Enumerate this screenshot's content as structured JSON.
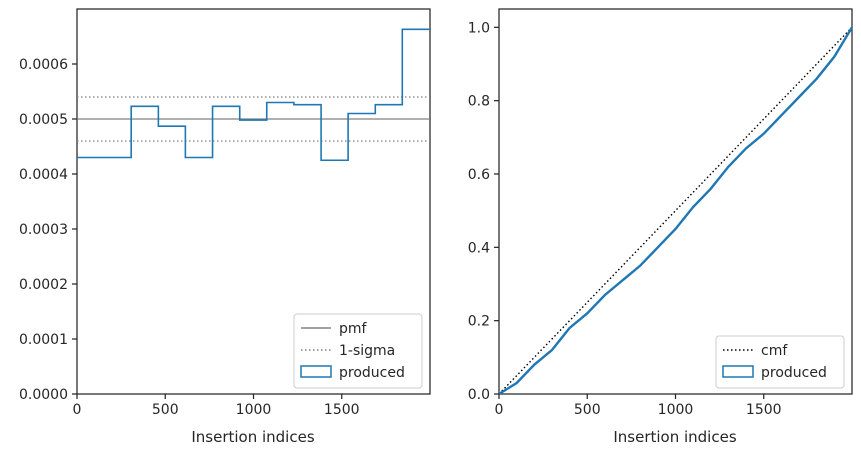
{
  "chart_data": [
    {
      "type": "step",
      "xlabel": "Insertion indices",
      "ylabel": "",
      "xlim": [
        0,
        2000
      ],
      "ylim": [
        0,
        0.0007
      ],
      "xticks": [
        0,
        500,
        1000,
        1500
      ],
      "xtick_labels": [
        "0",
        "500",
        "1000",
        "1500"
      ],
      "yticks": [
        0,
        0.0001,
        0.0002,
        0.0003,
        0.0004,
        0.0005,
        0.0006
      ],
      "ytick_labels": [
        "0.0000",
        "0.0001",
        "0.0002",
        "0.0003",
        "0.0004",
        "0.0005",
        "0.0006"
      ],
      "pmf": 0.0005,
      "sigma_band": [
        0.00046,
        0.00054
      ],
      "histogram": {
        "name": "produced",
        "bin_edges": [
          0,
          307,
          461,
          614,
          768,
          922,
          1075,
          1229,
          1383,
          1536,
          1690,
          1843,
          2000
        ],
        "values": [
          0.00043,
          0.000523,
          0.000487,
          0.00043,
          0.000523,
          0.000498,
          0.00053,
          0.000526,
          0.000425,
          0.00051,
          0.000526,
          0.000663
        ]
      },
      "legend": {
        "position": "lower right",
        "entries": [
          {
            "label": "pmf",
            "style": "solid",
            "color": "#808080"
          },
          {
            "label": "1-sigma",
            "style": "dotted",
            "color": "#808080"
          },
          {
            "label": "produced",
            "style": "box",
            "color": "#1f77b4"
          }
        ]
      },
      "colors": {
        "hist": "#1f77b4",
        "reference": "#808080"
      }
    },
    {
      "type": "line",
      "xlabel": "Insertion indices",
      "ylabel": "",
      "xlim": [
        0,
        2000
      ],
      "ylim": [
        0,
        1.05
      ],
      "xticks": [
        0,
        500,
        1000,
        1500
      ],
      "xtick_labels": [
        "0",
        "500",
        "1000",
        "1500"
      ],
      "yticks": [
        0,
        0.2,
        0.4,
        0.6,
        0.8,
        1.0
      ],
      "ytick_labels": [
        "0.0",
        "0.2",
        "0.4",
        "0.6",
        "0.8",
        "1.0"
      ],
      "series": [
        {
          "name": "cmf",
          "style": "dotted",
          "color": "#000000",
          "x": [
            0,
            2000
          ],
          "y": [
            0,
            1.0
          ]
        },
        {
          "name": "produced",
          "style": "solid",
          "color": "#1f77b4",
          "x": [
            0,
            100,
            200,
            300,
            400,
            500,
            600,
            700,
            800,
            900,
            1000,
            1100,
            1200,
            1300,
            1400,
            1500,
            1600,
            1700,
            1800,
            1900,
            2000
          ],
          "y": [
            0,
            0.03,
            0.08,
            0.12,
            0.18,
            0.22,
            0.27,
            0.31,
            0.35,
            0.4,
            0.45,
            0.51,
            0.56,
            0.62,
            0.67,
            0.71,
            0.76,
            0.81,
            0.86,
            0.92,
            1.0
          ]
        }
      ],
      "legend": {
        "position": "lower right",
        "entries": [
          {
            "label": "cmf",
            "style": "dotted",
            "color": "#000000"
          },
          {
            "label": "produced",
            "style": "box",
            "color": "#1f77b4"
          }
        ]
      }
    }
  ]
}
